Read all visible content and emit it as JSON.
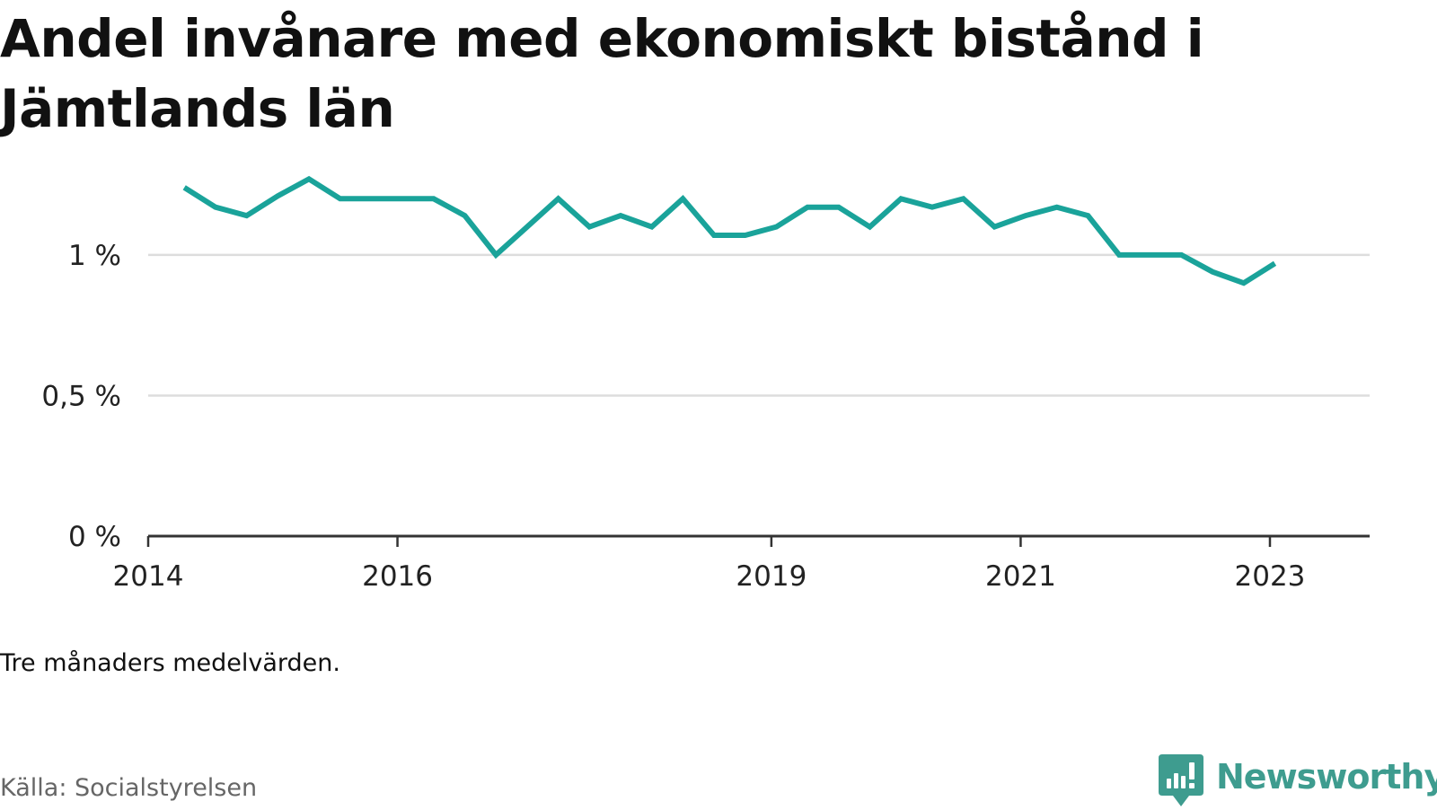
{
  "title": "Andel invånare med ekonomiskt bistånd i Jämtlands län",
  "note": "Tre månaders medelvärden.",
  "source": "Källa: Socialstyrelsen",
  "logo": {
    "text": "Newsworthy",
    "icon": "newsworthy-logo-icon",
    "color": "#3e9c8f"
  },
  "chart_data": {
    "type": "line",
    "title": "Andel invånare med ekonomiskt bistånd i Jämtlands län",
    "xlabel": "",
    "ylabel": "",
    "ylim": [
      0,
      1.3
    ],
    "xlim": [
      2014.0,
      2023.8
    ],
    "y_ticks": [
      {
        "value": 0,
        "label": "0 %"
      },
      {
        "value": 0.5,
        "label": "0,5 %"
      },
      {
        "value": 1,
        "label": "1 %"
      }
    ],
    "x_ticks": [
      {
        "value": 2014.0,
        "label": "2014"
      },
      {
        "value": 2016.0,
        "label": "2016"
      },
      {
        "value": 2019.0,
        "label": "2019"
      },
      {
        "value": 2021.0,
        "label": "2021"
      },
      {
        "value": 2023.0,
        "label": "2023"
      }
    ],
    "grid": true,
    "legend": "none",
    "series_color": "#1aa39a",
    "series": [
      {
        "x": [
          2014.29,
          2014.54,
          2014.79,
          2015.04,
          2015.29,
          2015.54,
          2015.79,
          2016.04,
          2016.29,
          2016.54,
          2016.79,
          2017.04,
          2017.29,
          2017.54,
          2017.79,
          2018.04,
          2018.29,
          2018.54,
          2018.79,
          2019.04,
          2019.29,
          2019.54,
          2019.79,
          2020.04,
          2020.29,
          2020.54,
          2020.79,
          2021.04,
          2021.29,
          2021.54,
          2021.79,
          2022.04,
          2022.29,
          2022.54,
          2022.79,
          2023.04
        ],
        "values": [
          1.24,
          1.17,
          1.14,
          1.21,
          1.27,
          1.2,
          1.2,
          1.2,
          1.2,
          1.14,
          1.0,
          1.1,
          1.2,
          1.1,
          1.14,
          1.1,
          1.2,
          1.07,
          1.07,
          1.1,
          1.17,
          1.17,
          1.1,
          1.2,
          1.17,
          1.2,
          1.1,
          1.14,
          1.17,
          1.14,
          1.0,
          1.0,
          1.0,
          0.94,
          0.9,
          0.97
        ]
      }
    ]
  }
}
